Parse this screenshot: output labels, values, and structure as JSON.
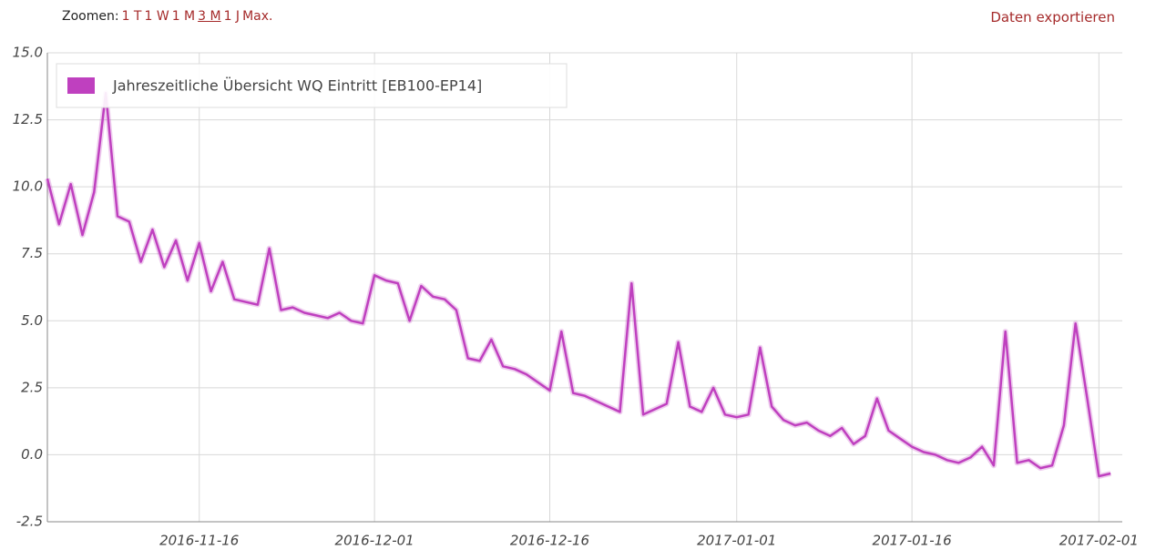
{
  "toolbar": {
    "zoom_label": "Zoomen:",
    "zoom_options": [
      "1 T",
      "1 W",
      "1 M",
      "3 M",
      "1 J",
      "Max."
    ],
    "export_label": "Daten exportieren"
  },
  "chart_data": {
    "type": "line",
    "x": [
      "2016-11-03",
      "2016-11-04",
      "2016-11-05",
      "2016-11-06",
      "2016-11-07",
      "2016-11-08",
      "2016-11-09",
      "2016-11-10",
      "2016-11-11",
      "2016-11-12",
      "2016-11-13",
      "2016-11-14",
      "2016-11-15",
      "2016-11-16",
      "2016-11-17",
      "2016-11-18",
      "2016-11-19",
      "2016-11-20",
      "2016-11-21",
      "2016-11-22",
      "2016-11-23",
      "2016-11-24",
      "2016-11-25",
      "2016-11-26",
      "2016-11-27",
      "2016-11-28",
      "2016-11-29",
      "2016-11-30",
      "2016-12-01",
      "2016-12-02",
      "2016-12-03",
      "2016-12-04",
      "2016-12-05",
      "2016-12-06",
      "2016-12-07",
      "2016-12-08",
      "2016-12-09",
      "2016-12-10",
      "2016-12-11",
      "2016-12-12",
      "2016-12-13",
      "2016-12-14",
      "2016-12-15",
      "2016-12-16",
      "2016-12-17",
      "2016-12-18",
      "2016-12-19",
      "2016-12-20",
      "2016-12-21",
      "2016-12-22",
      "2016-12-23",
      "2016-12-24",
      "2016-12-25",
      "2016-12-26",
      "2016-12-27",
      "2016-12-28",
      "2016-12-29",
      "2016-12-30",
      "2016-12-31",
      "2017-01-01",
      "2017-01-02",
      "2017-01-03",
      "2017-01-04",
      "2017-01-05",
      "2017-01-06",
      "2017-01-07",
      "2017-01-08",
      "2017-01-09",
      "2017-01-10",
      "2017-01-11",
      "2017-01-12",
      "2017-01-13",
      "2017-01-14",
      "2017-01-15",
      "2017-01-16",
      "2017-01-17",
      "2017-01-18",
      "2017-01-19",
      "2017-01-20",
      "2017-01-21",
      "2017-01-22",
      "2017-01-23",
      "2017-01-24",
      "2017-01-25",
      "2017-01-26",
      "2017-01-27",
      "2017-01-28",
      "2017-01-29",
      "2017-01-30",
      "2017-01-31",
      "2017-02-01",
      "2017-02-02"
    ],
    "series": [
      {
        "name": "Jahreszeitliche Übersicht WQ Eintritt [EB100-EP14]",
        "color": "#bf40bf",
        "values": [
          10.3,
          8.6,
          10.1,
          8.2,
          9.8,
          13.5,
          8.9,
          8.7,
          7.2,
          8.4,
          7.0,
          8.0,
          6.5,
          7.9,
          6.1,
          7.2,
          5.8,
          5.7,
          5.6,
          7.7,
          5.4,
          5.5,
          5.3,
          5.2,
          5.1,
          5.3,
          5.0,
          4.9,
          6.7,
          6.5,
          6.4,
          5.0,
          6.3,
          5.9,
          5.8,
          5.4,
          3.6,
          3.5,
          4.3,
          3.3,
          3.2,
          3.0,
          2.7,
          2.4,
          4.6,
          2.3,
          2.2,
          2.0,
          1.8,
          1.6,
          6.4,
          1.5,
          1.7,
          1.9,
          4.2,
          1.8,
          1.6,
          2.5,
          1.5,
          1.4,
          1.5,
          4.0,
          1.8,
          1.3,
          1.1,
          1.2,
          0.9,
          0.7,
          1.0,
          0.4,
          0.7,
          2.1,
          0.9,
          0.6,
          0.3,
          0.1,
          0.0,
          -0.2,
          -0.3,
          -0.1,
          0.3,
          -0.4,
          4.6,
          -0.3,
          -0.2,
          -0.5,
          -0.4,
          1.1,
          4.9,
          2.1,
          -0.8,
          -0.7
        ]
      }
    ],
    "xlim": [
      "2016-11-03",
      "2017-02-03"
    ],
    "xticks": [
      "2016-11-16",
      "2016-12-01",
      "2016-12-16",
      "2017-01-01",
      "2017-01-16",
      "2017-02-01"
    ],
    "ylim": [
      -2.5,
      15
    ],
    "yticks": [
      -2.5,
      {
        "value": 0,
        "label": "0.0"
      },
      2.5,
      {
        "value": 5,
        "label": "5.0"
      },
      7.5,
      {
        "value": 10,
        "label": "10.0"
      },
      12.5,
      {
        "value": 15,
        "label": "15.0"
      }
    ],
    "grid": true
  }
}
